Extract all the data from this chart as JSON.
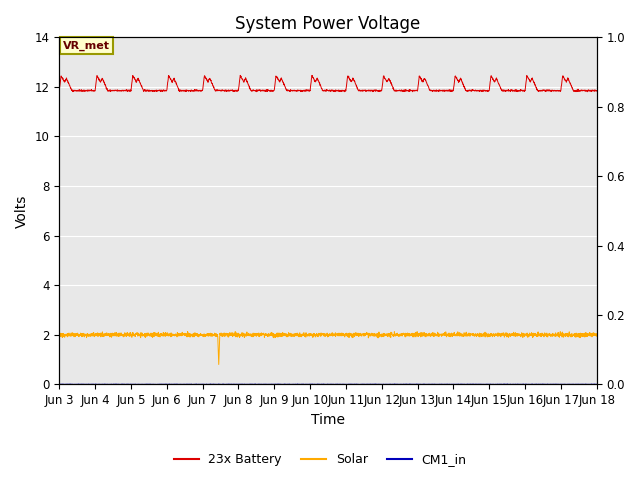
{
  "title": "System Power Voltage",
  "xlabel": "Time",
  "ylabel": "Volts",
  "xlim_days": [
    3,
    18
  ],
  "ylim_left": [
    0,
    14
  ],
  "ylim_right": [
    0.0,
    1.0
  ],
  "yticks_left": [
    0,
    2,
    4,
    6,
    8,
    10,
    12,
    14
  ],
  "yticks_right": [
    0.0,
    0.2,
    0.4,
    0.6,
    0.8,
    1.0
  ],
  "xtick_positions": [
    3,
    4,
    5,
    6,
    7,
    8,
    9,
    10,
    11,
    12,
    13,
    14,
    15,
    16,
    17,
    18
  ],
  "xtick_labels": [
    "Jun 3",
    "Jun 4",
    "Jun 5",
    "Jun 6",
    "Jun 7",
    "Jun 8",
    "Jun 9",
    "Jun 10",
    "Jun 11",
    "Jun 12",
    "Jun 13",
    "Jun 14",
    "Jun 15",
    "Jun 16",
    "Jun 17",
    "Jun 18"
  ],
  "bg_color": "#e8e8e8",
  "grid_color": "#ffffff",
  "battery_color": "#dd0000",
  "solar_color": "#ffaa00",
  "cm1_color": "#0000bb",
  "annotation_text": "VR_met",
  "annotation_bg": "#ffffcc",
  "annotation_border": "#999900",
  "legend_labels": [
    "23x Battery",
    "Solar",
    "CM1_in"
  ],
  "title_fontsize": 12,
  "axis_label_fontsize": 10,
  "tick_fontsize": 8.5
}
